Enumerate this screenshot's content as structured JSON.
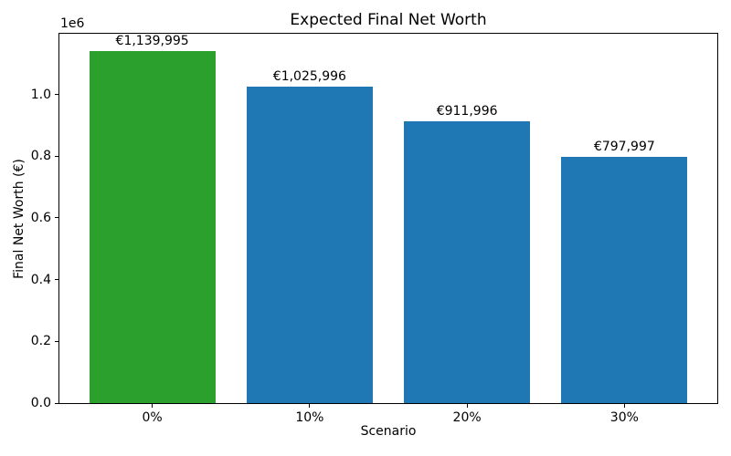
{
  "chart_data": {
    "type": "bar",
    "title": "Expected Final Net Worth",
    "xlabel": "Scenario",
    "ylabel": "Final Net Worth (€)",
    "categories": [
      "0%",
      "10%",
      "20%",
      "30%"
    ],
    "values": [
      1139995,
      1025996,
      911996,
      797997
    ],
    "bar_labels": [
      "€1,139,995",
      "€1,025,996",
      "€911,996",
      "€797,997"
    ],
    "bar_colors": [
      "#2ca02c",
      "#1f77b4",
      "#1f77b4",
      "#1f77b4"
    ],
    "bar_width": 0.8,
    "xlim": [
      -0.59,
      3.59
    ],
    "ylim": [
      0,
      1196995
    ],
    "yticks": [
      0,
      200000,
      400000,
      600000,
      800000,
      1000000
    ],
    "ytick_labels": [
      "0.0",
      "0.2",
      "0.4",
      "0.6",
      "0.8",
      "1.0"
    ],
    "y_offset_label": "1e6",
    "grid": false,
    "legend_position": "none",
    "accent_colors": {
      "highlight_bar": "#2ca02c",
      "default_bar": "#1f77b4",
      "text": "#000000",
      "background": "#ffffff"
    }
  }
}
